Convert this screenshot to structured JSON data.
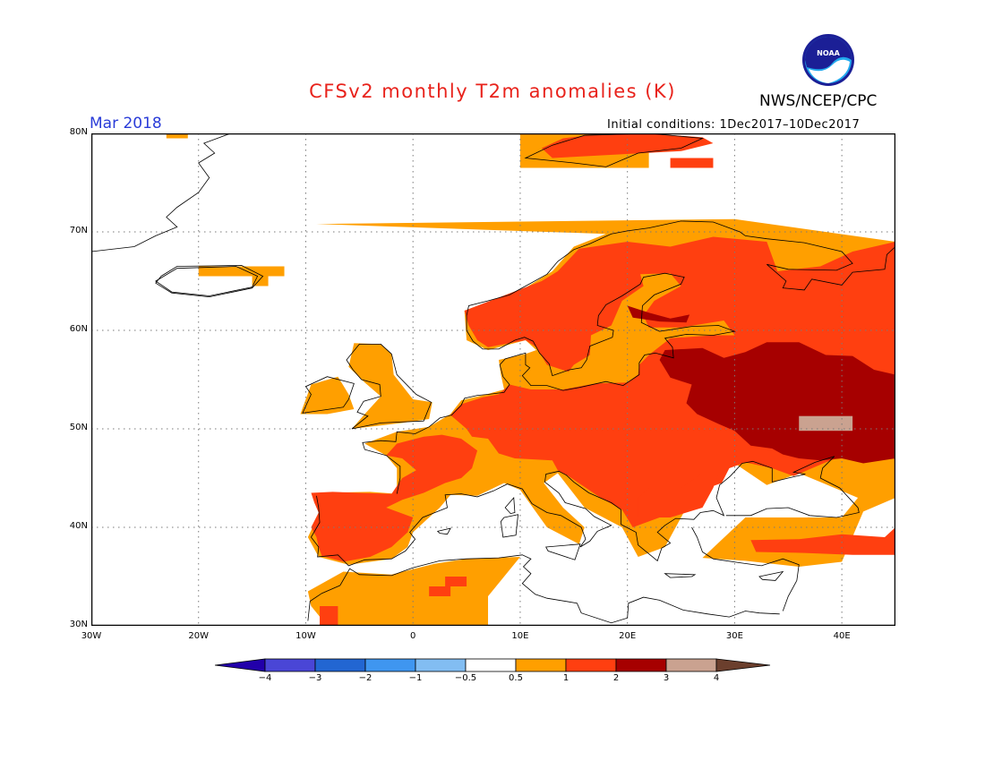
{
  "header": {
    "title": "CFSv2 monthly T2m anomalies (K)",
    "agency": "NWS/NCEP/CPC",
    "valid_month": "Mar 2018",
    "initial_conditions": "Initial conditions: 1Dec2017–10Dec2017",
    "logo_text": "NOAA"
  },
  "map": {
    "lon_range": [
      -30,
      45
    ],
    "lat_range": [
      30,
      80
    ],
    "lat_labels": [
      "80N",
      "70N",
      "60N",
      "50N",
      "40N",
      "30N"
    ],
    "lon_labels": [
      "30W",
      "20W",
      "10W",
      "0",
      "10E",
      "20E",
      "30E",
      "40E"
    ]
  },
  "colorbar": {
    "bins": [
      {
        "color": "#2200aa"
      },
      {
        "color": "#4a46d6"
      },
      {
        "color": "#2266d2"
      },
      {
        "color": "#3f96f0"
      },
      {
        "color": "#82bdf2"
      },
      {
        "color": "#ffffff"
      },
      {
        "color": "#ff9f00"
      },
      {
        "color": "#ff3f10"
      },
      {
        "color": "#a60000"
      },
      {
        "color": "#caa290"
      },
      {
        "color": "#6b3f2d"
      }
    ],
    "tick_labels": [
      "−4",
      "−3",
      "−2",
      "−1",
      "−0.5",
      "0.5",
      "1",
      "2",
      "3",
      "4"
    ]
  },
  "colors": {
    "anom_05_1": "#ff9f00",
    "anom_1_2": "#ff3f10",
    "anom_2_3": "#a60000",
    "anom_3_4": "#caa290",
    "title": "#e8221b",
    "month": "#2a3cd8"
  }
}
